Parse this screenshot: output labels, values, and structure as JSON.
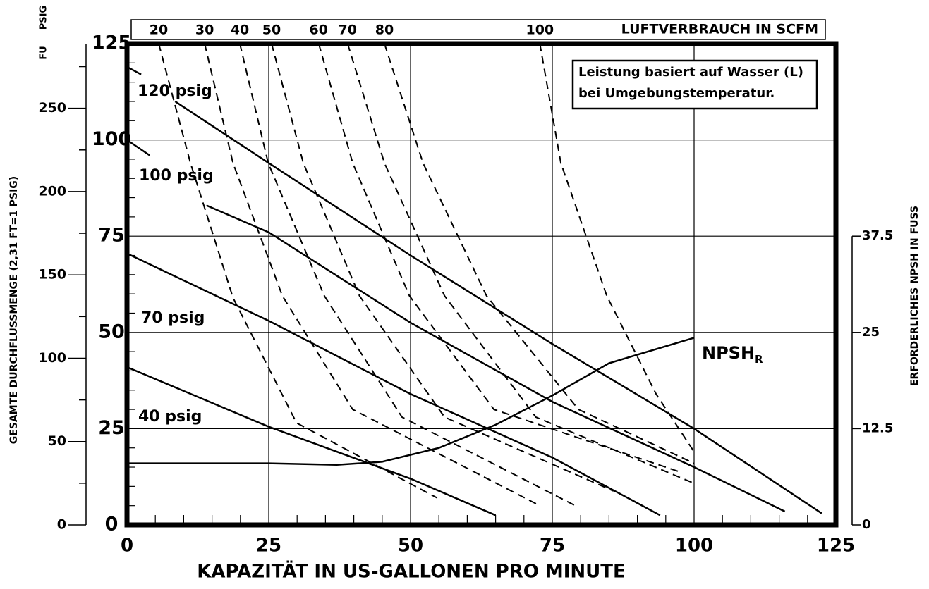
{
  "chart_data": {
    "type": "line",
    "x_label": "KAPAZITÄT IN US-GALLONEN PRO MINUTE",
    "y_label": "PSIG",
    "fu_label": "FU",
    "fu_axis_label": "GESAMTE DURCHFLUSSMENGE (2,31 FT=1 PSIG)",
    "npsh_axis_label": "ERFORDERLICHES NPSH IN FUSS",
    "air_axis_label": "LUFTVERBRAUCH IN SCFM",
    "note": [
      "Leistung basiert auf Wasser (L)",
      "bei Umgebungstemperatur."
    ],
    "xlim": [
      0,
      125
    ],
    "xticks": [
      0,
      25,
      50,
      75,
      100,
      125
    ],
    "xticks_minor": [
      5,
      10,
      15,
      20,
      30,
      35,
      40,
      45,
      55,
      60,
      65,
      70,
      80,
      85,
      90,
      95,
      105,
      110,
      115,
      120
    ],
    "ylim": [
      0,
      125
    ],
    "yticks": [
      0,
      25,
      50,
      75,
      100,
      125
    ],
    "yticks_minor": [
      5,
      10,
      15,
      20,
      30,
      35,
      40,
      45,
      55,
      60,
      65,
      70,
      80,
      85,
      90,
      95,
      105,
      110,
      115,
      120
    ],
    "fu_lim": [
      0,
      288.75
    ],
    "fu_ticks": [
      0,
      50,
      100,
      150,
      200,
      250
    ],
    "fu_ticks_minor": [
      25,
      75,
      125,
      175,
      225,
      275
    ],
    "npsh_lim": [
      0,
      62.5
    ],
    "npsh_ticks": [
      0,
      12.5,
      25,
      37.5
    ],
    "grid": true,
    "pressure_series": [
      {
        "name": "120 psig",
        "color": "#000000",
        "x": [
          0,
          2.5,
          null,
          8.5,
          25,
          50,
          75,
          100,
          122.5
        ],
        "values": [
          119,
          117,
          null,
          110,
          94,
          70,
          47,
          25,
          3
        ]
      },
      {
        "name": "100 psig",
        "color": "#000000",
        "x": [
          0,
          4,
          null,
          14,
          25,
          50,
          75,
          100,
          116
        ],
        "values": [
          100,
          96,
          null,
          83,
          76,
          52.5,
          32,
          15,
          3.5
        ]
      },
      {
        "name": "70 psig",
        "color": "#000000",
        "x": [
          0,
          25,
          50,
          75,
          94
        ],
        "values": [
          70.5,
          53,
          34,
          17.5,
          2.5
        ]
      },
      {
        "name": "40 psig",
        "color": "#000000",
        "x": [
          0,
          25,
          50,
          65
        ],
        "values": [
          41,
          25.5,
          12,
          2.5
        ]
      }
    ],
    "air_series": [
      {
        "name": "20",
        "color": "#000000",
        "x": [
          5.6,
          11.2,
          18.7,
          29.9,
          54.7
        ],
        "values": [
          125,
          94,
          59,
          26.5,
          7
        ]
      },
      {
        "name": "30",
        "color": "#000000",
        "x": [
          13.7,
          18.7,
          27.4,
          39.8,
          72.8
        ],
        "values": [
          125,
          94,
          59.5,
          30,
          5
        ]
      },
      {
        "name": "40",
        "color": "#000000",
        "x": [
          19.9,
          24.9,
          34.8,
          48.5,
          79.6
        ],
        "values": [
          125,
          94,
          59.5,
          28,
          4.6
        ]
      },
      {
        "name": "50",
        "color": "#000000",
        "x": [
          25.5,
          31.1,
          41,
          56,
          85.8
        ],
        "values": [
          125,
          94,
          59.5,
          28,
          8.8
        ]
      },
      {
        "name": "60",
        "color": "#000000",
        "x": [
          33.8,
          39.8,
          49.8,
          64.7,
          97.6
        ],
        "values": [
          125,
          94,
          59.5,
          30,
          13.7
        ]
      },
      {
        "name": "70",
        "color": "#000000",
        "x": [
          38.9,
          45.4,
          56,
          72.1,
          100
        ],
        "values": [
          125,
          94,
          59.5,
          28,
          10.8
        ]
      },
      {
        "name": "80",
        "color": "#000000",
        "x": [
          45.4,
          52.2,
          63.4,
          79.6,
          100
        ],
        "values": [
          125,
          94,
          59.5,
          30,
          16
        ]
      },
      {
        "name": "100",
        "color": "#000000",
        "x": [
          72.8,
          76.5,
          84.6,
          93.3,
          100
        ],
        "values": [
          125,
          94,
          59.5,
          34,
          19
        ]
      }
    ],
    "npsh_series": {
      "name": "NPSH",
      "subscript": "R",
      "color": "#000000",
      "x": [
        0,
        25,
        37,
        45,
        55,
        65,
        75,
        85,
        100
      ],
      "values": [
        8,
        8,
        7.8,
        8.2,
        10,
        13,
        16.8,
        21,
        24.3
      ]
    }
  }
}
